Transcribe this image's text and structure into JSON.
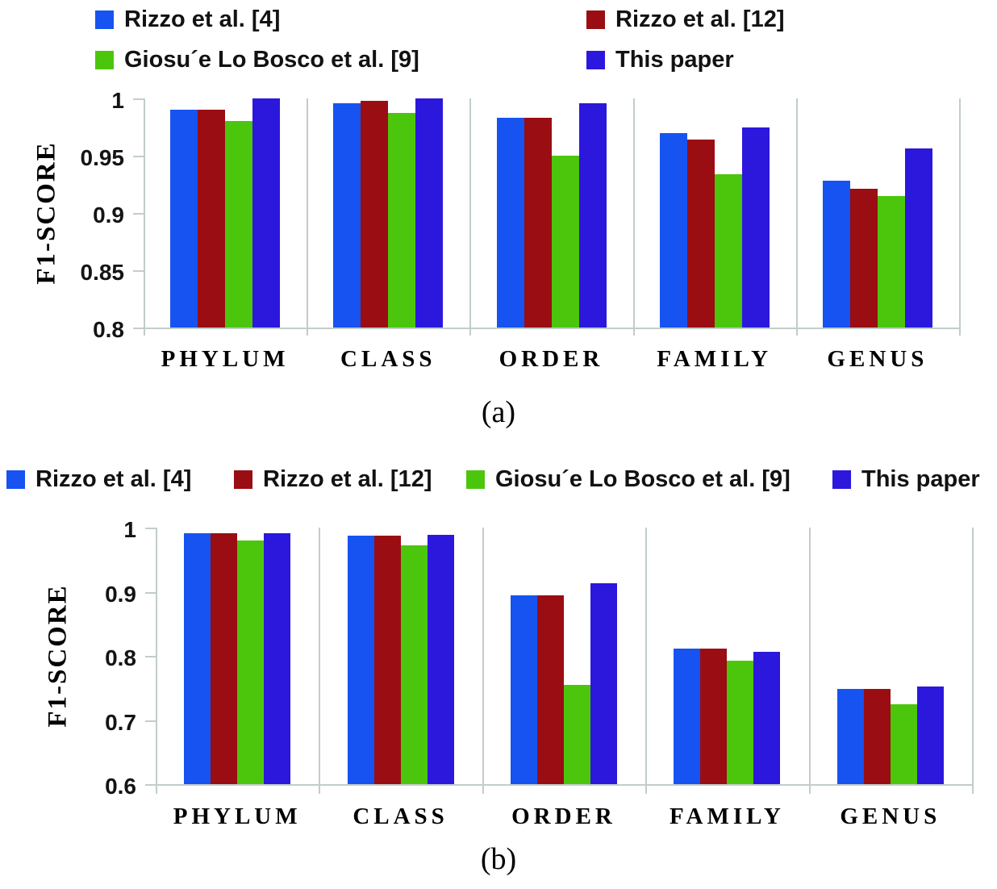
{
  "figure": {
    "y_axis_title": "F1-SCORE",
    "categories": [
      "PHYLUM",
      "CLASS",
      "ORDER",
      "FAMILY",
      "GENUS"
    ]
  },
  "palette": {
    "series_blue": "#1653F0",
    "series_dark_red": "#9A0D12",
    "series_green": "#4CC60D",
    "series_dark_blue": "#2B18DC",
    "axis_gray": "#c2cdc9",
    "text_black": "#000000"
  },
  "chart_data": [
    {
      "id": "a",
      "type": "bar",
      "caption": "(a)",
      "title": "",
      "xlabel": "",
      "ylabel": "F1-SCORE",
      "ylim": [
        0.8,
        1.0
      ],
      "grid": "vertical-group-separators",
      "legend_position": "top-two-columns",
      "y_ticks": [
        {
          "value": 1.0,
          "label": "1"
        },
        {
          "value": 0.95,
          "label": "0.95"
        },
        {
          "value": 0.9,
          "label": "0.9"
        },
        {
          "value": 0.85,
          "label": "0.85"
        },
        {
          "value": 0.8,
          "label": "0.8"
        }
      ],
      "categories": [
        "PHYLUM",
        "CLASS",
        "ORDER",
        "FAMILY",
        "GENUS"
      ],
      "series": [
        {
          "name": "Rizzo et al. [4]",
          "color": "#1653F0",
          "values": [
            0.99,
            0.996,
            0.983,
            0.97,
            0.928
          ]
        },
        {
          "name": "Rizzo et al. [12]",
          "color": "#9A0D12",
          "values": [
            0.99,
            0.998,
            0.983,
            0.964,
            0.921
          ]
        },
        {
          "name": "Giosu´e Lo Bosco et al. [9]",
          "color": "#4CC60D",
          "values": [
            0.98,
            0.987,
            0.95,
            0.934,
            0.915
          ]
        },
        {
          "name": "This paper",
          "color": "#2B18DC",
          "values": [
            1.0,
            1.0,
            0.996,
            0.975,
            0.956
          ]
        }
      ]
    },
    {
      "id": "b",
      "type": "bar",
      "caption": "(b)",
      "title": "",
      "xlabel": "",
      "ylabel": "F1-SCORE",
      "ylim": [
        0.6,
        1.0
      ],
      "grid": "vertical-group-separators",
      "legend_position": "top-single-row",
      "y_ticks": [
        {
          "value": 1.0,
          "label": "1"
        },
        {
          "value": 0.9,
          "label": "0.9"
        },
        {
          "value": 0.8,
          "label": "0.8"
        },
        {
          "value": 0.7,
          "label": "0.7"
        },
        {
          "value": 0.6,
          "label": "0.6"
        }
      ],
      "categories": [
        "PHYLUM",
        "CLASS",
        "ORDER",
        "FAMILY",
        "GENUS"
      ],
      "series": [
        {
          "name": "Rizzo et al. [4]",
          "color": "#1653F0",
          "values": [
            0.991,
            0.987,
            0.894,
            0.811,
            0.749
          ]
        },
        {
          "name": "Rizzo et al. [12]",
          "color": "#9A0D12",
          "values": [
            0.991,
            0.987,
            0.894,
            0.811,
            0.749
          ]
        },
        {
          "name": "Giosu´e Lo Bosco et al. [9]",
          "color": "#4CC60D",
          "values": [
            0.98,
            0.972,
            0.755,
            0.792,
            0.725
          ]
        },
        {
          "name": "This paper",
          "color": "#2B18DC",
          "values": [
            0.991,
            0.989,
            0.913,
            0.806,
            0.752
          ]
        }
      ]
    }
  ]
}
